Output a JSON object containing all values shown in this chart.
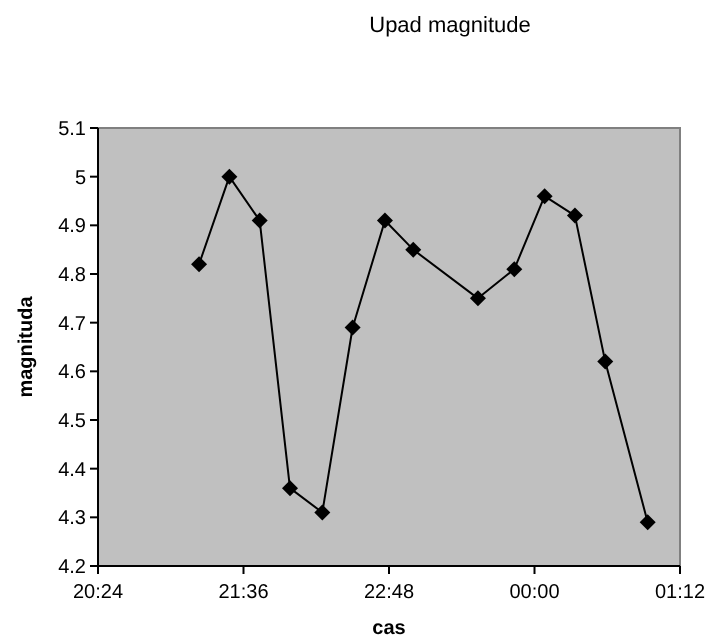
{
  "chart_data": {
    "type": "line",
    "title": "Upad magnitude",
    "xlabel": "cas",
    "ylabel": "magnituda",
    "x": [
      "2000-01-01T21:14",
      "2000-01-01T21:29",
      "2000-01-01T21:44",
      "2000-01-01T21:59",
      "2000-01-01T22:15",
      "2000-01-01T22:30",
      "2000-01-01T22:46",
      "2000-01-01T23:00",
      "2000-01-01T23:32",
      "2000-01-01T23:50",
      "2000-01-02T00:05",
      "2000-01-02T00:20",
      "2000-01-02T00:35",
      "2000-01-02T00:56"
    ],
    "series": [
      {
        "color": "#000000",
        "values": [
          4.82,
          5.0,
          4.91,
          4.36,
          4.31,
          4.69,
          4.91,
          4.85,
          4.75,
          4.81,
          4.96,
          4.92,
          4.62,
          4.29
        ]
      }
    ],
    "xlim": [
      "2000-01-01T20:24",
      "2000-01-02T01:12"
    ],
    "xticks": [
      {
        "value": "2000-01-01T20:24",
        "label": "20:24"
      },
      {
        "value": "2000-01-01T21:36",
        "label": "21:36"
      },
      {
        "value": "2000-01-01T22:48",
        "label": "22:48"
      },
      {
        "value": "2000-01-02T00:00",
        "label": "00:00"
      },
      {
        "value": "2000-01-02T01:12",
        "label": "01:12"
      }
    ],
    "ylim": [
      4.2,
      5.1
    ],
    "yticks": [
      4.2,
      4.3,
      4.4,
      4.5,
      4.6,
      4.7,
      4.8,
      4.9,
      5,
      5.1
    ],
    "grid": false,
    "legend": false,
    "marker": "diamond",
    "line_style": "solid"
  }
}
